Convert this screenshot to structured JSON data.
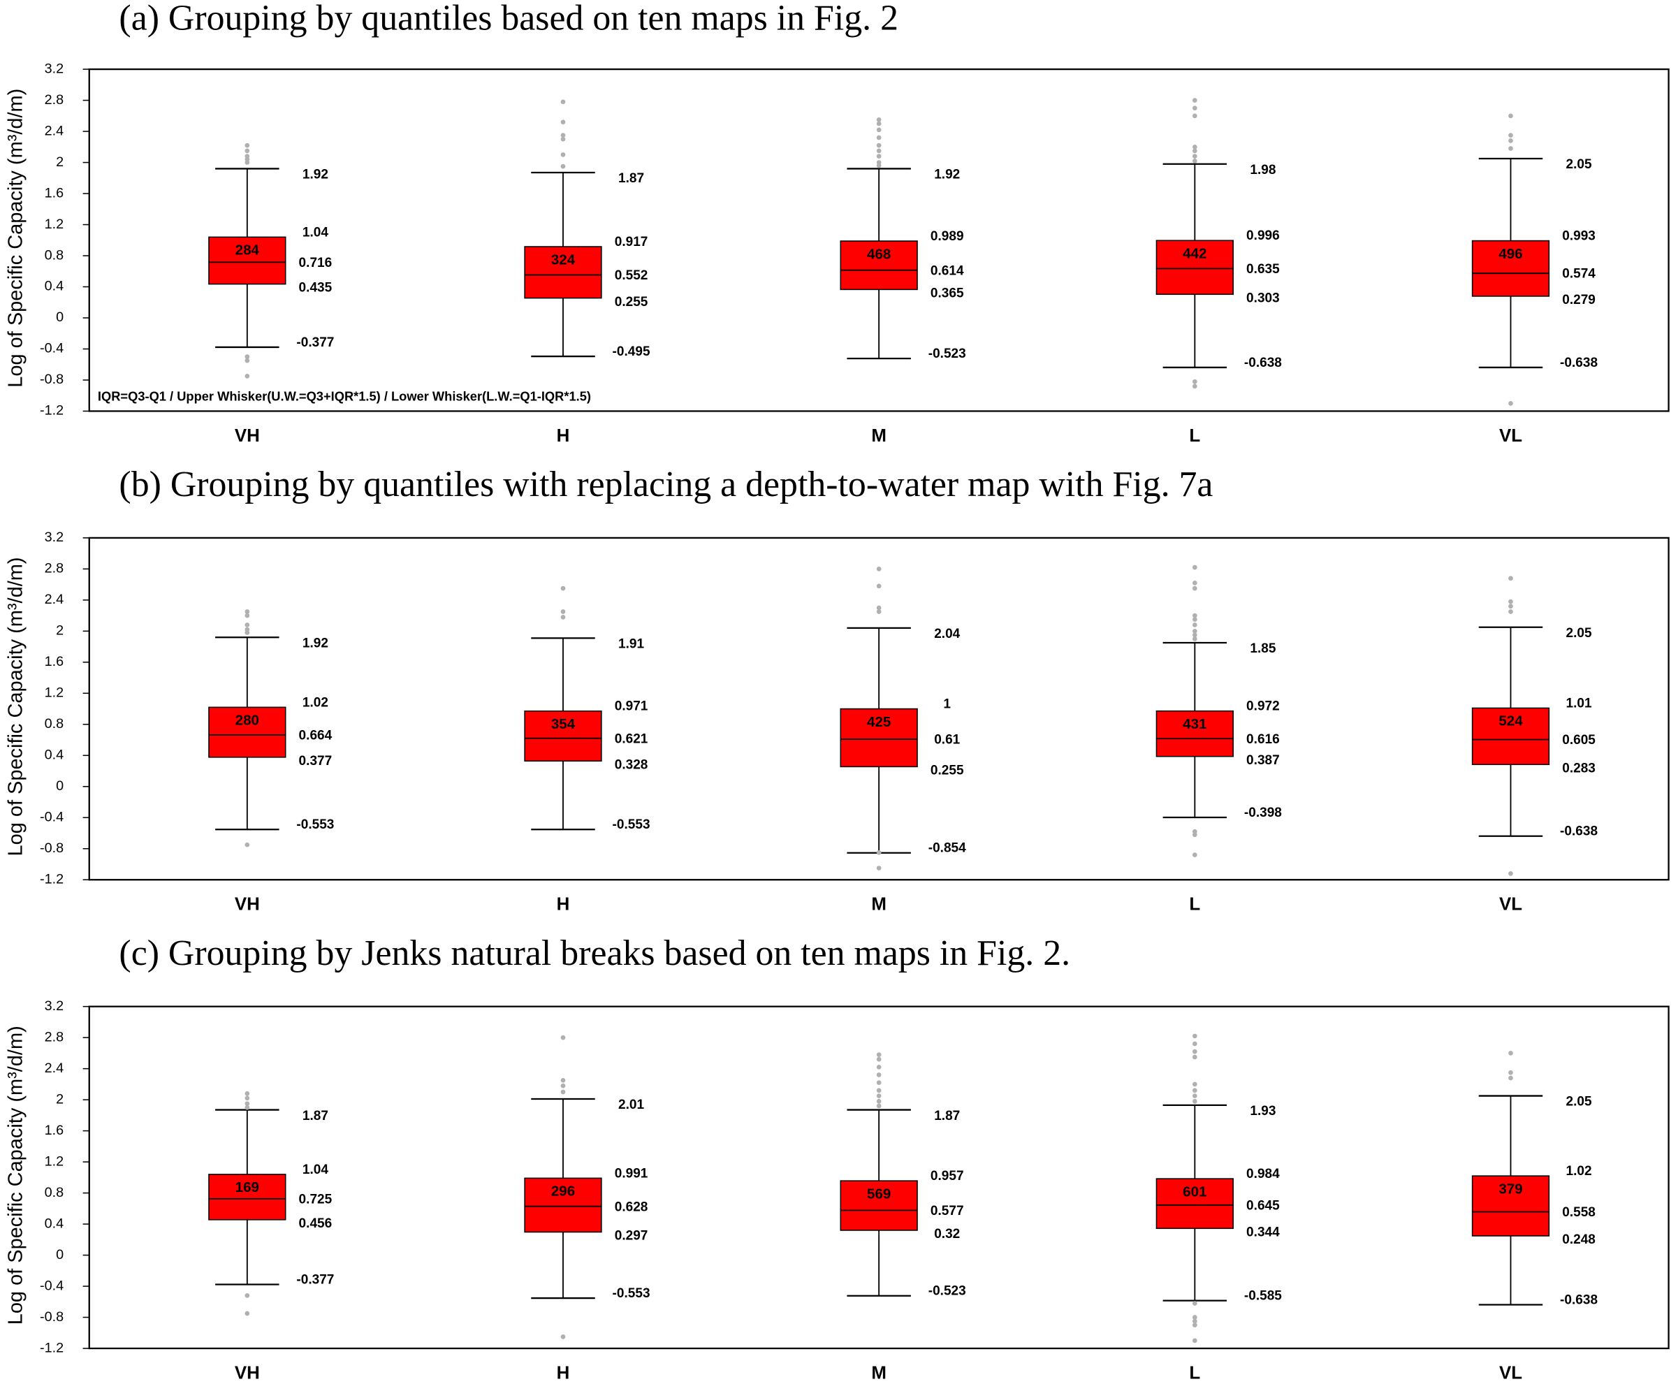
{
  "chart_data": [
    {
      "type": "box",
      "title": "(a) Grouping by quantiles based on ten maps in Fig. 2",
      "ylabel": "Log of Specific Capacity (m³/d/m)",
      "annotation": "IQR=Q3-Q1 / Upper Whisker(U.W.=Q3+IQR*1.5) / Lower Whisker(L.W.=Q1-IQR*1.5)",
      "categories": [
        "VH",
        "H",
        "M",
        "L",
        "VL"
      ],
      "color": "#ff0000",
      "outlier_color": "#b0b0b0",
      "ylim": [
        -1.2,
        3.2
      ],
      "yticks": [
        -1.2,
        -0.8,
        -0.4,
        0,
        0.4,
        0.8,
        1.2,
        1.6,
        2,
        2.4,
        2.8,
        3.2
      ],
      "whisker_high": [
        1.92,
        1.87,
        1.92,
        1.98,
        2.05
      ],
      "q3": [
        1.04,
        0.917,
        0.989,
        0.996,
        0.993
      ],
      "median": [
        0.716,
        0.552,
        0.614,
        0.635,
        0.574
      ],
      "q1": [
        0.435,
        0.255,
        0.365,
        0.303,
        0.279
      ],
      "whisker_low": [
        -0.377,
        -0.495,
        -0.523,
        -0.638,
        -0.638
      ],
      "counts": [
        284,
        324,
        468,
        442,
        496
      ],
      "outliers": [
        [
          2.22,
          2.15,
          2.08,
          2.04,
          2.0,
          -0.5,
          -0.55,
          -0.75
        ],
        [
          2.78,
          2.52,
          2.35,
          2.3,
          2.1,
          1.95
        ],
        [
          2.55,
          2.5,
          2.42,
          2.32,
          2.22,
          2.15,
          2.08,
          2.0,
          1.96
        ],
        [
          2.8,
          2.7,
          2.6,
          2.2,
          2.15,
          2.08,
          2.02,
          -0.82,
          -0.88
        ],
        [
          2.6,
          2.35,
          2.28,
          2.18,
          -1.1
        ]
      ]
    },
    {
      "type": "box",
      "title": "(b) Grouping by quantiles with replacing a depth-to-water map with Fig. 7a",
      "ylabel": "Log of Specific Capacity (m³/d/m)",
      "categories": [
        "VH",
        "H",
        "M",
        "L",
        "VL"
      ],
      "color": "#ff0000",
      "outlier_color": "#b0b0b0",
      "ylim": [
        -1.2,
        3.2
      ],
      "yticks": [
        -1.2,
        -0.8,
        -0.4,
        0,
        0.4,
        0.8,
        1.2,
        1.6,
        2,
        2.4,
        2.8,
        3.2
      ],
      "whisker_high": [
        1.92,
        1.91,
        2.04,
        1.85,
        2.05
      ],
      "q3": [
        1.02,
        0.971,
        1,
        0.972,
        1.01
      ],
      "median": [
        0.664,
        0.621,
        0.61,
        0.616,
        0.605
      ],
      "q1": [
        0.377,
        0.328,
        0.255,
        0.387,
        0.283
      ],
      "whisker_low": [
        -0.553,
        -0.553,
        -0.854,
        -0.398,
        -0.638
      ],
      "counts": [
        280,
        354,
        425,
        431,
        524
      ],
      "outliers": [
        [
          2.25,
          2.2,
          2.08,
          2.02,
          1.98,
          -0.75
        ],
        [
          2.55,
          2.25,
          2.18
        ],
        [
          2.8,
          2.58,
          2.3,
          2.25,
          -0.85,
          -1.05
        ],
        [
          2.82,
          2.62,
          2.55,
          2.2,
          2.15,
          2.08,
          2.0,
          1.95,
          1.9,
          -0.58,
          -0.62,
          -0.88
        ],
        [
          2.68,
          2.38,
          2.32,
          2.25,
          -1.12
        ]
      ]
    },
    {
      "type": "box",
      "title": "(c) Grouping by Jenks natural breaks based on ten maps in Fig. 2.",
      "ylabel": "Log of Specific Capacity (m³/d/m)",
      "categories": [
        "VH",
        "H",
        "M",
        "L",
        "VL"
      ],
      "color": "#ff0000",
      "outlier_color": "#b0b0b0",
      "ylim": [
        -1.2,
        3.2
      ],
      "yticks": [
        -1.2,
        -0.8,
        -0.4,
        0,
        0.4,
        0.8,
        1.2,
        1.6,
        2,
        2.4,
        2.8,
        3.2
      ],
      "whisker_high": [
        1.87,
        2.01,
        1.87,
        1.93,
        2.05
      ],
      "q3": [
        1.04,
        0.991,
        0.957,
        0.984,
        1.02
      ],
      "median": [
        0.725,
        0.628,
        0.577,
        0.645,
        0.558
      ],
      "q1": [
        0.456,
        0.297,
        0.32,
        0.344,
        0.248
      ],
      "whisker_low": [
        -0.377,
        -0.553,
        -0.523,
        -0.585,
        -0.638
      ],
      "counts": [
        169,
        296,
        569,
        601,
        379
      ],
      "outliers": [
        [
          2.08,
          2.02,
          1.95,
          1.9,
          -0.52,
          -0.75
        ],
        [
          2.8,
          2.25,
          2.18,
          2.1,
          -1.05
        ],
        [
          2.58,
          2.52,
          2.42,
          2.32,
          2.22,
          2.12,
          2.05,
          1.98,
          1.92
        ],
        [
          2.82,
          2.72,
          2.62,
          2.55,
          2.2,
          2.12,
          2.05,
          1.98,
          -0.62,
          -0.8,
          -0.85,
          -0.9,
          -1.1
        ],
        [
          2.6,
          2.35,
          2.28
        ]
      ]
    }
  ]
}
